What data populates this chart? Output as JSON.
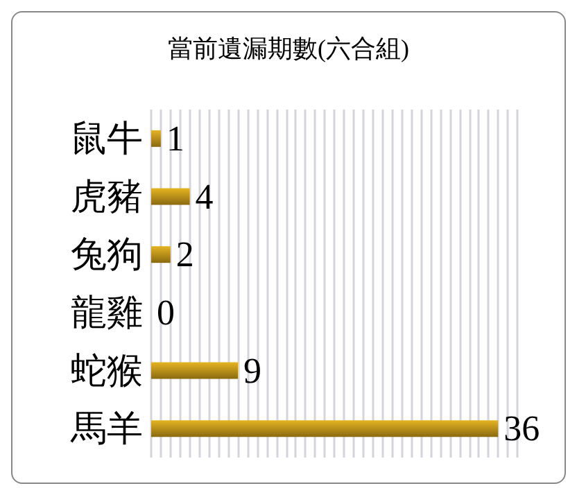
{
  "chart_data": {
    "type": "bar",
    "orientation": "horizontal",
    "title": "當前遺漏期數(六合組)",
    "categories": [
      "鼠牛",
      "虎豬",
      "兔狗",
      "龍雞",
      "蛇猴",
      "馬羊"
    ],
    "values": [
      1,
      4,
      2,
      0,
      9,
      36
    ],
    "color": "#e6b422",
    "data_labels": true,
    "xlim": [
      0,
      38
    ],
    "xticks": [
      0,
      1,
      2,
      3,
      4,
      5,
      6,
      7,
      8,
      9,
      10,
      11,
      12,
      13,
      14,
      15,
      16,
      17,
      18,
      19,
      20,
      21,
      22,
      23,
      24,
      25,
      26,
      27,
      28,
      29,
      30,
      31,
      32,
      33,
      34,
      35,
      36,
      37,
      38
    ],
    "grid": "x",
    "tick_labels": "y"
  }
}
